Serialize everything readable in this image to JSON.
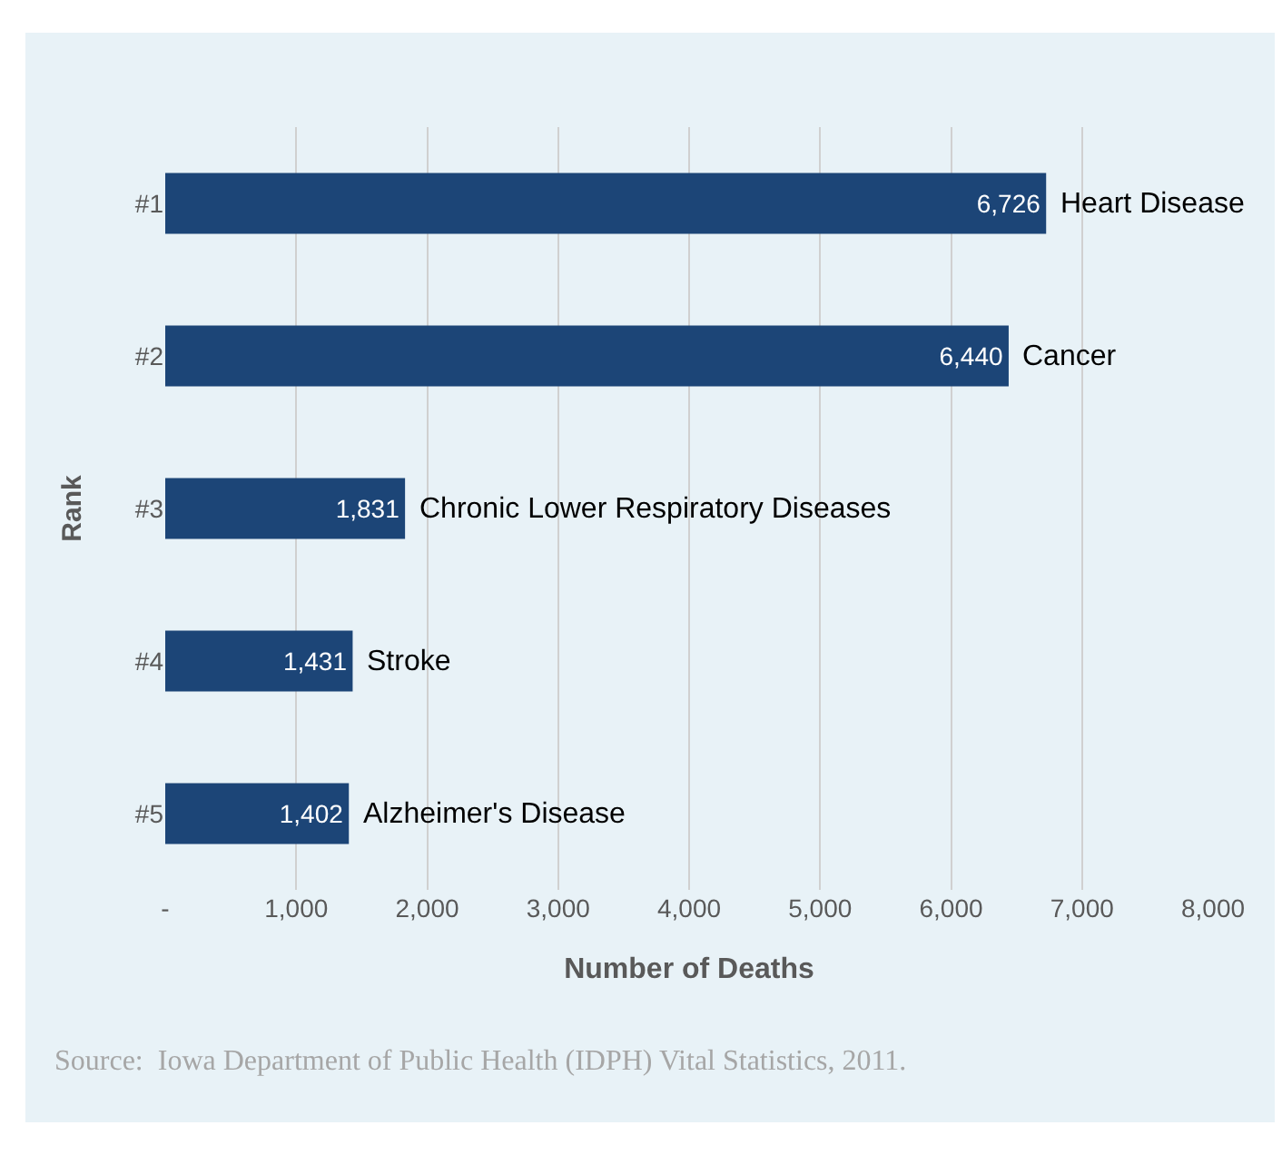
{
  "chart_data": {
    "type": "bar",
    "orientation": "horizontal",
    "xlabel": "Number of Deaths",
    "ylabel": "Rank",
    "categories": [
      "#1",
      "#2",
      "#3",
      "#4",
      "#5"
    ],
    "values": [
      6726,
      6440,
      1831,
      1431,
      1402
    ],
    "color": "#1c4577",
    "value_labels": [
      "6,726",
      "6,440",
      "1,831",
      "1,431",
      "1,402"
    ],
    "xlim": [
      0,
      8000
    ],
    "xticks": [
      {
        "value": 0,
        "label": "-"
      },
      {
        "value": 1000,
        "label": "1,000"
      },
      {
        "value": 2000,
        "label": "2,000"
      },
      {
        "value": 3000,
        "label": "3,000"
      },
      {
        "value": 4000,
        "label": "4,000"
      },
      {
        "value": 5000,
        "label": "5,000"
      },
      {
        "value": 6000,
        "label": "6,000"
      },
      {
        "value": 7000,
        "label": "7,000"
      },
      {
        "value": 8000,
        "label": "8,000"
      }
    ],
    "grid": "x",
    "annotations": [
      "Heart Disease",
      "Cancer",
      "Chronic Lower Respiratory Diseases",
      "Stroke",
      "Alzheimer's Disease",
      "Source:  Iowa Department of Public Health (IDPH) Vital Statistics, 2011."
    ]
  }
}
